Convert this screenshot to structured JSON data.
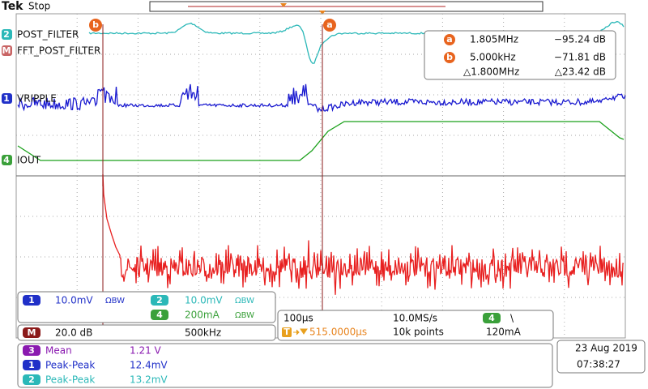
{
  "header": {
    "brand": "Tek",
    "status": "Stop"
  },
  "cursor_markers": [
    "b",
    "a"
  ],
  "channels": [
    {
      "badge": "2",
      "label": "POST_FILTER"
    },
    {
      "badge": "M",
      "label": "FFT_POST_FILTER"
    },
    {
      "badge": "1",
      "label": "VRIPPLE"
    },
    {
      "badge": "4",
      "label": "IOUT"
    }
  ],
  "cursor_readout": {
    "rows": [
      [
        "a",
        "1.805MHz",
        "−95.24 dB"
      ],
      [
        "b",
        "5.000kHz",
        "−71.81 dB"
      ]
    ],
    "delta": [
      "△1.800MHz",
      "△23.42 dB"
    ]
  },
  "vertical_settings": [
    {
      "badge": "1",
      "scale": "10.0mV",
      "bw": "ΩBW"
    },
    {
      "badge": "2",
      "scale": "10.0mV",
      "bw": "ΩBW"
    },
    {
      "badge": "4",
      "scale": "200mA",
      "bw": "ΩBW"
    }
  ],
  "math": {
    "badge": "M",
    "scale": "20.0 dB",
    "span": "500kHz"
  },
  "timebase": {
    "scale": "100µs",
    "rate": "10.0MS/s",
    "trigger_badge": "4",
    "trigger_slope": "\\",
    "trigger_icon": "T",
    "trigger_position": "515.0000µs",
    "record": "10k points",
    "trigger_level": "120mA"
  },
  "measurements": [
    [
      "3",
      "Mean",
      "1.21 V"
    ],
    [
      "1",
      "Peak-Peak",
      "12.4mV"
    ],
    [
      "2",
      "Peak-Peak",
      "13.2mV"
    ]
  ],
  "clock": {
    "date": "23 Aug 2019",
    "time": "07:38:27"
  }
}
